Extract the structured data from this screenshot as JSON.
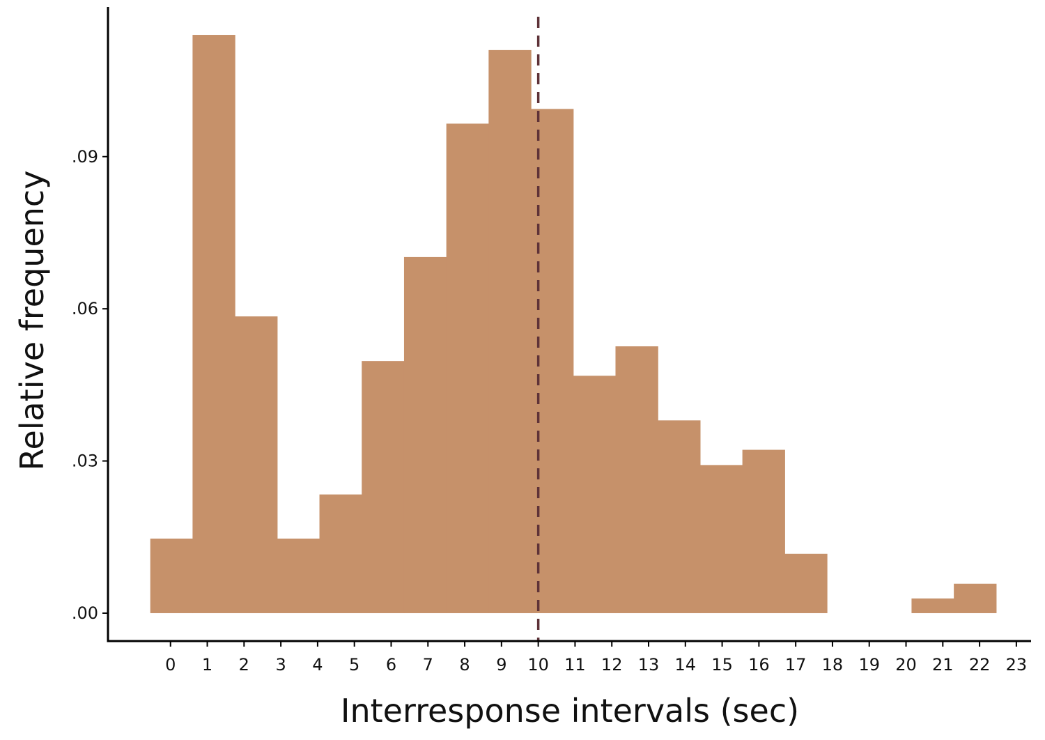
{
  "chart_data": {
    "type": "bar",
    "title": "",
    "xlabel": "Interresponse intervals (sec)",
    "ylabel": "Relative frequency",
    "x_ticks": [
      "0",
      "1",
      "2",
      "3",
      "4",
      "5",
      "6",
      "7",
      "8",
      "9",
      "10",
      "11",
      "12",
      "13",
      "14",
      "15",
      "16",
      "17",
      "18",
      "19",
      "20",
      "21",
      "22",
      "23"
    ],
    "y_ticks": [
      {
        "value": 0.0,
        "label": ".00"
      },
      {
        "value": 0.03,
        "label": ".03"
      },
      {
        "value": 0.06,
        "label": ".06"
      },
      {
        "value": 0.09,
        "label": ".09"
      }
    ],
    "xlim": [
      -1.7,
      23.4
    ],
    "ylim": [
      -0.0055,
      0.1195
    ],
    "bins": [
      {
        "start": -0.55,
        "end": 0.6,
        "value": 0.0147
      },
      {
        "start": 0.6,
        "end": 1.75,
        "value": 0.114
      },
      {
        "start": 1.75,
        "end": 2.9,
        "value": 0.0585
      },
      {
        "start": 2.9,
        "end": 4.05,
        "value": 0.0147
      },
      {
        "start": 4.05,
        "end": 5.2,
        "value": 0.0234
      },
      {
        "start": 5.2,
        "end": 6.35,
        "value": 0.0497
      },
      {
        "start": 6.35,
        "end": 7.5,
        "value": 0.0702
      },
      {
        "start": 7.5,
        "end": 8.65,
        "value": 0.0965
      },
      {
        "start": 8.65,
        "end": 9.8,
        "value": 0.111
      },
      {
        "start": 9.8,
        "end": 10.95,
        "value": 0.0994
      },
      {
        "start": 10.95,
        "end": 12.1,
        "value": 0.0468
      },
      {
        "start": 12.1,
        "end": 13.25,
        "value": 0.0526
      },
      {
        "start": 13.25,
        "end": 14.4,
        "value": 0.038
      },
      {
        "start": 14.4,
        "end": 15.55,
        "value": 0.0292
      },
      {
        "start": 15.55,
        "end": 16.7,
        "value": 0.0322
      },
      {
        "start": 16.7,
        "end": 17.85,
        "value": 0.0117
      },
      {
        "start": 17.85,
        "end": 19.0,
        "value": 0
      },
      {
        "start": 19.0,
        "end": 20.15,
        "value": 0
      },
      {
        "start": 20.15,
        "end": 21.3,
        "value": 0.0029
      },
      {
        "start": 21.3,
        "end": 22.45,
        "value": 0.0058
      }
    ],
    "reference_line": {
      "x": 10,
      "style": "dashed",
      "color": "#5e3238"
    },
    "bar_color": "#c6916a",
    "axis_color": "#000000"
  }
}
